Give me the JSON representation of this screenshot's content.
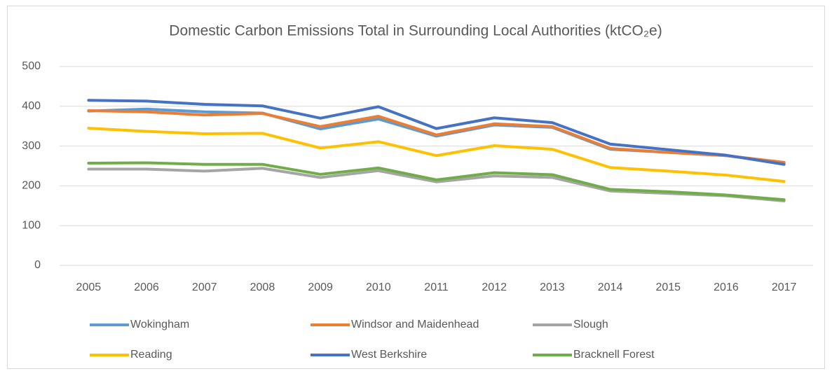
{
  "chart_data": {
    "type": "line",
    "title": "Domestic Carbon Emissions Total in Surrounding Local Authorities (ktCO₂e)",
    "categories": [
      "2005",
      "2006",
      "2007",
      "2008",
      "2009",
      "2010",
      "2011",
      "2012",
      "2013",
      "2014",
      "2015",
      "2016",
      "2017"
    ],
    "series": [
      {
        "name": "Wokingham",
        "color": "#5b9bd5",
        "values": [
          388,
          393,
          386,
          383,
          343,
          368,
          325,
          353,
          347,
          292,
          284,
          276,
          258
        ]
      },
      {
        "name": "Windsor and Maidenhead",
        "color": "#ed7d31",
        "values": [
          389,
          386,
          378,
          382,
          349,
          375,
          328,
          356,
          349,
          294,
          284,
          276,
          259
        ]
      },
      {
        "name": "Slough",
        "color": "#a5a5a5",
        "values": [
          242,
          242,
          237,
          244,
          221,
          238,
          210,
          225,
          221,
          187,
          181,
          175,
          162
        ]
      },
      {
        "name": "Reading",
        "color": "#ffc000",
        "values": [
          345,
          337,
          331,
          332,
          295,
          311,
          276,
          301,
          292,
          246,
          237,
          227,
          211
        ]
      },
      {
        "name": "West Berkshire",
        "color": "#4472c4",
        "values": [
          415,
          413,
          405,
          401,
          370,
          399,
          344,
          371,
          359,
          305,
          291,
          277,
          254
        ]
      },
      {
        "name": "Bracknell Forest",
        "color": "#70ad47",
        "values": [
          257,
          258,
          254,
          254,
          229,
          245,
          215,
          233,
          228,
          191,
          185,
          177,
          165
        ]
      }
    ],
    "ylim": [
      0,
      500
    ],
    "yticks": [
      0,
      100,
      200,
      300,
      400,
      500
    ],
    "grid": true,
    "legend": "bottom"
  }
}
